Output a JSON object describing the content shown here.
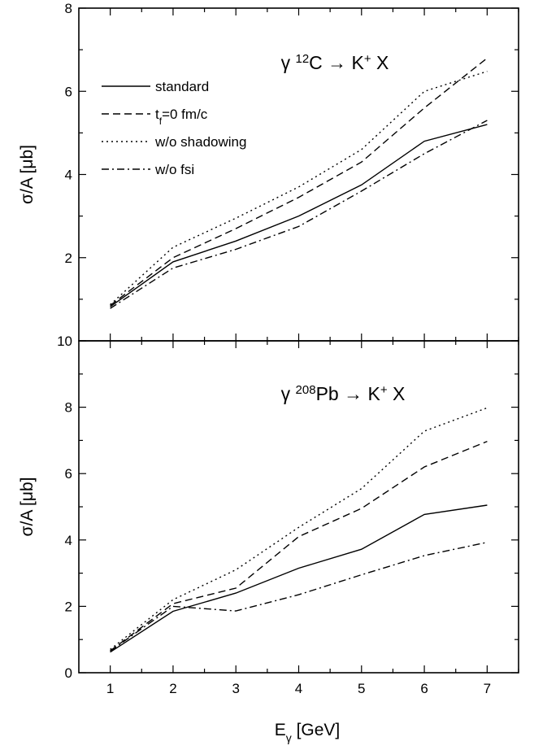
{
  "chart_data": {
    "type": "line",
    "xlabel": {
      "main": "E",
      "sub": "γ",
      "rest": " [GeV]"
    },
    "x_ticks": [
      1,
      2,
      3,
      4,
      5,
      6,
      7
    ],
    "xlim": [
      0.5,
      7.5
    ],
    "grid": false,
    "legend": {
      "placement": "top-left of upper panel",
      "entries": [
        {
          "series": "standard",
          "label": "standard"
        },
        {
          "series": "tf0",
          "label_parts": [
            "t",
            "f",
            "=0 fm/c"
          ]
        },
        {
          "series": "noshadow",
          "label": "w/o shadowing"
        },
        {
          "series": "nofsi",
          "label": "w/o fsi"
        }
      ]
    },
    "panels": [
      {
        "id": "carbon",
        "title_parts": [
          "γ ",
          "12",
          "C → K",
          "+",
          " X"
        ],
        "ylabel": "σ/A [μb]",
        "ylim": [
          0,
          8
        ],
        "y_ticks": [
          2,
          4,
          6,
          8
        ],
        "y_tick_labels": [
          "2",
          "4",
          "6",
          "8"
        ],
        "x": [
          1,
          2,
          3,
          4,
          5,
          6,
          7
        ],
        "series": [
          {
            "key": "standard",
            "values": [
              0.82,
              1.9,
              2.4,
              3.0,
              3.75,
              4.8,
              5.2
            ]
          },
          {
            "key": "tf0",
            "values": [
              0.85,
              2.0,
              2.7,
              3.45,
              4.3,
              5.6,
              6.8
            ]
          },
          {
            "key": "noshadow",
            "values": [
              0.87,
              2.25,
              2.95,
              3.7,
              4.6,
              6.0,
              6.48
            ]
          },
          {
            "key": "nofsi",
            "values": [
              0.78,
              1.75,
              2.2,
              2.75,
              3.6,
              4.5,
              5.3
            ]
          }
        ]
      },
      {
        "id": "lead",
        "title_parts": [
          "γ ",
          "208",
          "Pb → K",
          "+",
          " X"
        ],
        "ylabel": "σ/A [μb]",
        "ylim": [
          0,
          10
        ],
        "y_ticks": [
          0,
          2,
          4,
          6,
          8,
          10
        ],
        "y_tick_labels": [
          "0",
          "2",
          "4",
          "6",
          "8",
          "10"
        ],
        "x": [
          1,
          2,
          3,
          4,
          5,
          6,
          7
        ],
        "series": [
          {
            "key": "standard",
            "values": [
              0.62,
              1.85,
              2.4,
              3.15,
              3.72,
              4.77,
              5.05
            ]
          },
          {
            "key": "tf0",
            "values": [
              0.66,
              2.08,
              2.55,
              4.1,
              4.95,
              6.2,
              6.97
            ]
          },
          {
            "key": "noshadow",
            "values": [
              0.7,
              2.2,
              3.1,
              4.38,
              5.55,
              7.28,
              7.98
            ]
          },
          {
            "key": "nofsi",
            "values": [
              0.65,
              2.0,
              1.86,
              2.35,
              2.95,
              3.53,
              3.93
            ]
          }
        ]
      }
    ]
  },
  "styles": {
    "standard": {
      "dash": "",
      "color": "#000000"
    },
    "tf0": {
      "dash": "9 5",
      "color": "#000000"
    },
    "noshadow": {
      "dash": "2 4",
      "color": "#000000"
    },
    "nofsi": {
      "dash": "9 4 2 4",
      "color": "#000000"
    }
  }
}
